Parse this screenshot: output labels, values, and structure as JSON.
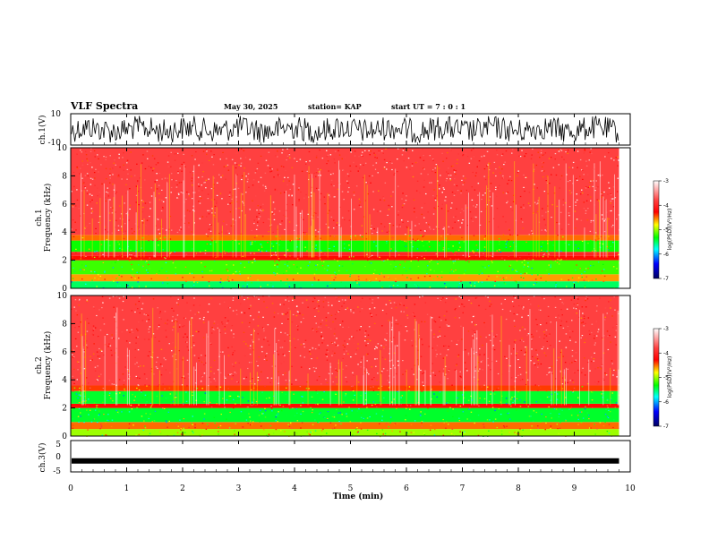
{
  "header": {
    "title": "VLF Spectra",
    "date": "May 30, 2025",
    "station": "station= KAP",
    "start": "start  UT  =   7 : 0  : 1"
  },
  "chart_data": [
    {
      "type": "line",
      "panel": "ch1_waveform",
      "ylabel": "ch.1(V)",
      "ylim": [
        -10,
        10
      ],
      "yticks": [
        "10",
        "-10"
      ],
      "xlim": [
        0,
        10
      ],
      "colors": {
        "trace": "#000000"
      }
    },
    {
      "type": "heatmap",
      "panel": "ch1_spectrogram",
      "ylabel": "ch.1\nFrequency (kHz)",
      "ylabel_lines": [
        "ch.1",
        "Frequency  (kHz)"
      ],
      "yticks": [
        "0",
        "2",
        "4",
        "6",
        "8",
        "10"
      ],
      "ylim": [
        0,
        10
      ],
      "xlim": [
        0,
        10
      ],
      "bands_khz": [
        {
          "from": 0,
          "to": 0.5,
          "level": -5.5
        },
        {
          "from": 0.5,
          "to": 1.0,
          "level": -4.6
        },
        {
          "from": 1.0,
          "to": 2.0,
          "level": -5.2
        },
        {
          "from": 2.0,
          "to": 2.3,
          "level": -4.3
        },
        {
          "from": 2.3,
          "to": 2.6,
          "level": -4.0
        },
        {
          "from": 2.6,
          "to": 3.4,
          "level": -5.3
        },
        {
          "from": 3.4,
          "to": 3.8,
          "level": -4.5
        },
        {
          "from": 3.8,
          "to": 10,
          "level": -3.8
        }
      ],
      "colorbar": {
        "label": "log(PSD)(V²/Hz)",
        "ticks": [
          "-3",
          "-4",
          "-5",
          "-6",
          "-7"
        ],
        "range": [
          -7,
          -3
        ]
      }
    },
    {
      "type": "heatmap",
      "panel": "ch2_spectrogram",
      "ylabel": "ch.2\nFrequency (kHz)",
      "ylabel_lines": [
        "ch.2",
        "Frequency  (kHz)"
      ],
      "yticks": [
        "0",
        "2",
        "4",
        "6",
        "8",
        "10"
      ],
      "ylim": [
        0,
        10
      ],
      "xlim": [
        0,
        10
      ],
      "bands_khz": [
        {
          "from": 0,
          "to": 0.5,
          "level": -5.0
        },
        {
          "from": 0.5,
          "to": 1.0,
          "level": -4.5
        },
        {
          "from": 1.0,
          "to": 2.0,
          "level": -5.4
        },
        {
          "from": 2.0,
          "to": 2.3,
          "level": -4.3
        },
        {
          "from": 2.3,
          "to": 3.2,
          "level": -5.4
        },
        {
          "from": 3.2,
          "to": 3.6,
          "level": -4.4
        },
        {
          "from": 3.6,
          "to": 10,
          "level": -3.8
        }
      ],
      "colorbar": {
        "label": "log(PSD)(V²/Hz)",
        "ticks": [
          "-3",
          "-4",
          "-5",
          "-6",
          "-7"
        ],
        "range": [
          -7,
          -3
        ]
      }
    },
    {
      "type": "line",
      "panel": "ch3_waveform",
      "ylabel": "ch.3(V)",
      "ylim": [
        -5,
        5
      ],
      "yticks": [
        "5",
        "0",
        "-5"
      ],
      "xlim": [
        0,
        10
      ],
      "level_v": -1.5,
      "colors": {
        "trace": "#000000"
      }
    }
  ],
  "xaxis": {
    "label": "Time  (min)",
    "ticks": [
      "0",
      "1",
      "2",
      "3",
      "4",
      "5",
      "6",
      "7",
      "8",
      "9",
      "10"
    ],
    "xlim": [
      0,
      10
    ],
    "data_end_min": 9.8
  },
  "colormap": [
    "#ffffff",
    "#ff3030",
    "#ffff00",
    "#00ff00",
    "#00ffff",
    "#0000ff",
    "#000080"
  ]
}
